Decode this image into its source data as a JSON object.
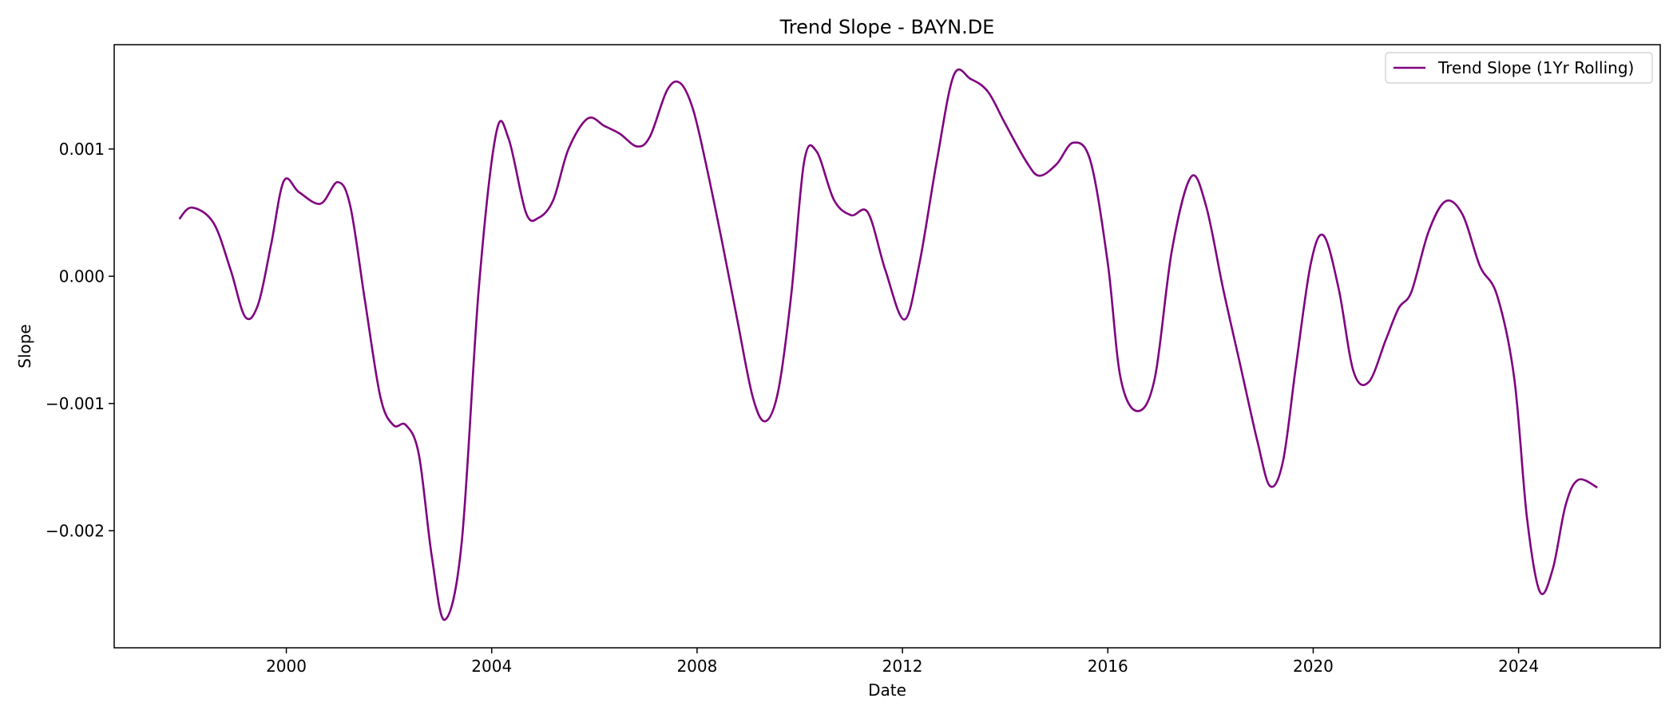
{
  "chart_data": {
    "type": "line",
    "title": "Trend Slope - BAYN.DE",
    "xlabel": "Date",
    "ylabel": "Slope",
    "x_ticks": [
      "2000",
      "2004",
      "2008",
      "2012",
      "2016",
      "2020",
      "2024"
    ],
    "y_ticks": [
      "0.001",
      "0.000",
      "−0.001",
      "−0.002"
    ],
    "xlim": [
      "1996-08-25",
      "2026-10-05"
    ],
    "ylim": [
      -0.00292,
      0.00182
    ],
    "grid": false,
    "legend_position": "top-right",
    "series": [
      {
        "name": "Trend Slope (1Yr Rolling)",
        "color": "#800080",
        "points": [
          [
            "1997-12-01",
            0.00045
          ],
          [
            "1998-03-01",
            0.00054
          ],
          [
            "1998-08-01",
            0.00042
          ],
          [
            "1998-12-01",
            5e-05
          ],
          [
            "1999-03-15",
            -0.00032
          ],
          [
            "1999-06-15",
            -0.00022
          ],
          [
            "1999-09-15",
            0.00025
          ],
          [
            "1999-12-15",
            0.00075
          ],
          [
            "2000-04-01",
            0.00066
          ],
          [
            "2000-09-01",
            0.00057
          ],
          [
            "2001-01-01",
            0.00074
          ],
          [
            "2001-04-01",
            0.00055
          ],
          [
            "2001-07-15",
            -0.0002
          ],
          [
            "2001-11-01",
            -0.00095
          ],
          [
            "2002-02-01",
            -0.00117
          ],
          [
            "2002-05-01",
            -0.00117
          ],
          [
            "2002-08-01",
            -0.0014
          ],
          [
            "2002-11-01",
            -0.0022
          ],
          [
            "2003-02-01",
            -0.0027
          ],
          [
            "2003-06-01",
            -0.0021
          ],
          [
            "2003-10-01",
            -0.0001
          ],
          [
            "2004-02-01",
            0.00112
          ],
          [
            "2004-05-01",
            0.00108
          ],
          [
            "2004-09-01",
            0.0005
          ],
          [
            "2004-12-01",
            0.00046
          ],
          [
            "2005-03-15",
            0.0006
          ],
          [
            "2005-07-01",
            0.001
          ],
          [
            "2005-11-15",
            0.00124
          ],
          [
            "2006-03-15",
            0.00118
          ],
          [
            "2006-07-01",
            0.00112
          ],
          [
            "2006-11-01",
            0.00102
          ],
          [
            "2007-02-01",
            0.0011
          ],
          [
            "2007-06-01",
            0.00146
          ],
          [
            "2007-09-01",
            0.00152
          ],
          [
            "2007-12-01",
            0.00132
          ],
          [
            "2008-03-01",
            0.0009
          ],
          [
            "2008-07-01",
            0.00025
          ],
          [
            "2008-10-15",
            -0.00035
          ],
          [
            "2009-02-01",
            -0.00095
          ],
          [
            "2009-05-01",
            -0.00114
          ],
          [
            "2009-08-01",
            -0.0009
          ],
          [
            "2009-11-01",
            -0.00015
          ],
          [
            "2010-02-01",
            0.0009
          ],
          [
            "2010-05-01",
            0.00098
          ],
          [
            "2010-09-01",
            0.0006
          ],
          [
            "2011-01-01",
            0.00048
          ],
          [
            "2011-05-01",
            0.0005
          ],
          [
            "2011-09-01",
            5e-05
          ],
          [
            "2012-01-15",
            -0.00034
          ],
          [
            "2012-05-01",
            0.0001
          ],
          [
            "2012-09-01",
            0.0009
          ],
          [
            "2013-01-01",
            0.00158
          ],
          [
            "2013-05-01",
            0.00155
          ],
          [
            "2013-09-01",
            0.00145
          ],
          [
            "2014-01-01",
            0.0012
          ],
          [
            "2014-06-01",
            0.0009
          ],
          [
            "2014-09-01",
            0.00079
          ],
          [
            "2015-01-01",
            0.00088
          ],
          [
            "2015-05-01",
            0.00105
          ],
          [
            "2015-09-01",
            0.0009
          ],
          [
            "2016-01-01",
            0.0001
          ],
          [
            "2016-04-01",
            -0.0008
          ],
          [
            "2016-08-01",
            -0.00106
          ],
          [
            "2016-12-01",
            -0.0008
          ],
          [
            "2017-04-01",
            0.0002
          ],
          [
            "2017-08-15",
            0.00078
          ],
          [
            "2017-12-01",
            0.00055
          ],
          [
            "2018-04-01",
            -0.0001
          ],
          [
            "2018-08-01",
            -0.0007
          ],
          [
            "2018-12-01",
            -0.0013
          ],
          [
            "2019-03-01",
            -0.00165
          ],
          [
            "2019-06-01",
            -0.00145
          ],
          [
            "2019-09-01",
            -0.0007
          ],
          [
            "2019-12-15",
            0.0001
          ],
          [
            "2020-03-15",
            0.00032
          ],
          [
            "2020-07-01",
            -0.0001
          ],
          [
            "2020-10-15",
            -0.00075
          ],
          [
            "2021-02-01",
            -0.00083
          ],
          [
            "2021-06-01",
            -0.0005
          ],
          [
            "2021-09-01",
            -0.00025
          ],
          [
            "2021-12-01",
            -0.00012
          ],
          [
            "2022-04-01",
            0.00035
          ],
          [
            "2022-08-01",
            0.00059
          ],
          [
            "2022-12-01",
            0.00048
          ],
          [
            "2023-04-01",
            8e-05
          ],
          [
            "2023-08-01",
            -0.00015
          ],
          [
            "2023-12-01",
            -0.0008
          ],
          [
            "2024-03-01",
            -0.0019
          ],
          [
            "2024-06-01",
            -0.00248
          ],
          [
            "2024-09-01",
            -0.0023
          ],
          [
            "2024-12-01",
            -0.0018
          ],
          [
            "2025-03-01",
            -0.0016
          ],
          [
            "2025-07-15",
            -0.00166
          ]
        ]
      }
    ]
  }
}
